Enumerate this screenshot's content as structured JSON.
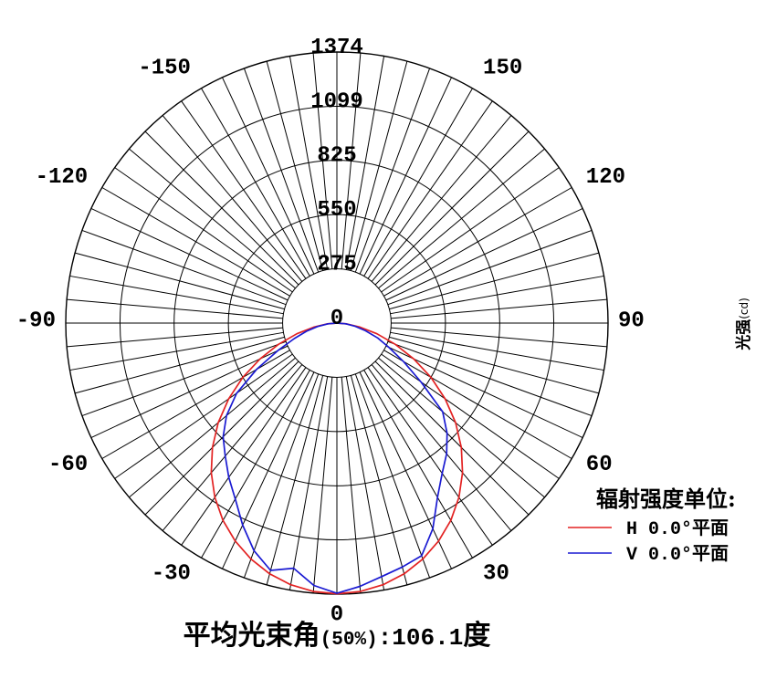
{
  "chart_data": {
    "type": "line",
    "projection": "polar",
    "grid": true,
    "x": [
      -90,
      -85,
      -80,
      -75,
      -70,
      -65,
      -60,
      -55,
      -50,
      -45,
      -40,
      -35,
      -30,
      -25,
      -20,
      -15,
      -10,
      -5,
      0,
      5,
      10,
      15,
      20,
      25,
      30,
      35,
      40,
      45,
      50,
      55,
      60,
      65,
      70,
      75,
      80,
      85,
      90
    ],
    "series": [
      {
        "name": "H 0.0°平面",
        "color": "#e32222",
        "values": [
          0,
          50,
          120,
          210,
          315,
          430,
          550,
          670,
          785,
          892,
          990,
          1078,
          1155,
          1219,
          1273,
          1316,
          1347,
          1366,
          1372,
          1366,
          1347,
          1316,
          1273,
          1219,
          1155,
          1078,
          990,
          892,
          785,
          670,
          550,
          430,
          315,
          210,
          120,
          50,
          0
        ]
      },
      {
        "name": "V 0.0°平面",
        "color": "#1a1ad2",
        "values": [
          0,
          45,
          100,
          160,
          230,
          330,
          470,
          620,
          730,
          815,
          880,
          955,
          1030,
          1130,
          1228,
          1298,
          1262,
          1335,
          1370,
          1340,
          1305,
          1280,
          1255,
          1150,
          1020,
          930,
          865,
          790,
          700,
          520,
          390,
          290,
          220,
          150,
          95,
          45,
          0
        ]
      }
    ],
    "radial_axis": {
      "label": "光强",
      "unit": "(cd)",
      "range": [
        0,
        1374
      ],
      "ticks": [
        0,
        275,
        550,
        825,
        1099,
        1374
      ],
      "tick_labels": [
        "0",
        "275",
        "550",
        "825",
        "1099",
        "1374"
      ]
    },
    "angular_axis": {
      "range": [
        -180,
        180
      ],
      "grid_step": 5,
      "zero_direction": "bottom",
      "positive_direction": "counterclockwise",
      "ticks": [
        -150,
        -120,
        -90,
        -60,
        -30,
        0,
        30,
        60,
        90,
        120,
        150
      ],
      "tick_labels": [
        "-150",
        "-120",
        "-90",
        "-60",
        "-30",
        "0",
        "30",
        "60",
        "90",
        "120",
        "150"
      ]
    },
    "legend": {
      "title": "辐射强度单位:",
      "position": "right"
    },
    "annotation": {
      "label": "平均光束角",
      "condition": "(50%)",
      "separator": ":",
      "value": "106.1",
      "unit": "度"
    }
  }
}
